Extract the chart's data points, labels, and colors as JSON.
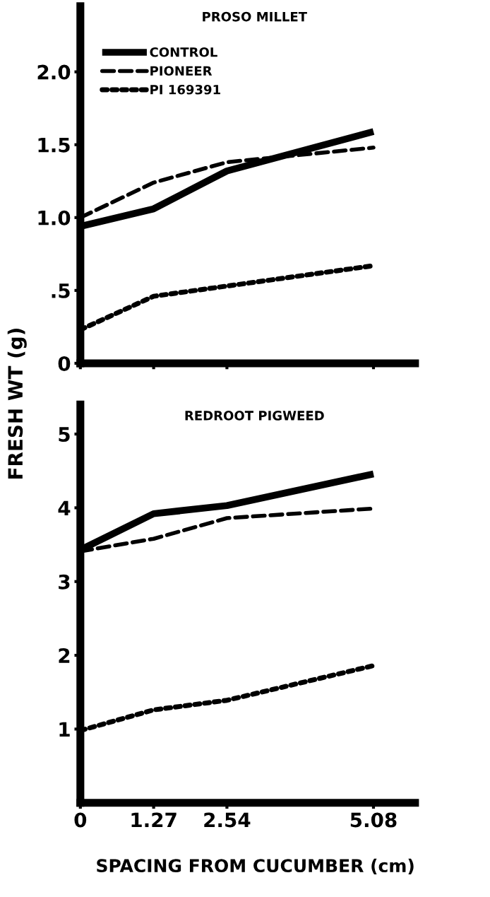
{
  "chart_data": [
    {
      "type": "line",
      "title": "PROSO MILLET",
      "ylabel": "FRESH WT (g)",
      "x": [
        0,
        1.27,
        2.54,
        5.08
      ],
      "series": [
        {
          "name": "CONTROL",
          "color": "#000000",
          "line_style": "solid",
          "values": [
            0.94,
            1.06,
            1.32,
            1.59
          ]
        },
        {
          "name": "PIONEER",
          "color": "#000000",
          "line_style": "dashed",
          "values": [
            1.0,
            1.24,
            1.38,
            1.48
          ]
        },
        {
          "name": "PI 169391",
          "color": "#000000",
          "line_style": "dotted",
          "values": [
            0.23,
            0.46,
            0.53,
            0.67
          ]
        }
      ],
      "xlim": [
        0,
        5.8
      ],
      "xticks": [
        0,
        1.27,
        2.54,
        5.08
      ],
      "ylim": [
        0,
        2.45
      ],
      "yticks": [
        0,
        {
          "value": 0.5,
          "label": ".5"
        },
        {
          "value": 1.0,
          "label": "1.0"
        },
        {
          "value": 1.5,
          "label": "1.5"
        },
        {
          "value": 2.0,
          "label": "2.0"
        }
      ],
      "tick_labels": "y",
      "legend": "top left",
      "grid": false,
      "marker": "none"
    },
    {
      "type": "line",
      "title": "REDROOT PIGWEED",
      "xlabel": "SPACING FROM CUCUMBER (cm)",
      "x": [
        0,
        1.27,
        2.54,
        5.08
      ],
      "series": [
        {
          "color": "#000000",
          "line_style": "solid",
          "values": [
            3.43,
            3.92,
            4.03,
            4.46
          ]
        },
        {
          "color": "#000000",
          "line_style": "dashed",
          "values": [
            3.41,
            3.58,
            3.86,
            3.99
          ]
        },
        {
          "color": "#000000",
          "line_style": "dotted",
          "values": [
            0.98,
            1.26,
            1.39,
            1.86
          ]
        }
      ],
      "xlim": [
        0,
        5.8
      ],
      "xticks": [
        0,
        1.27,
        2.54,
        5.08
      ],
      "ylim": [
        0,
        5.4
      ],
      "yticks": [
        1,
        2,
        3,
        4,
        5
      ],
      "legend": false,
      "grid": false,
      "marker": "none"
    }
  ]
}
